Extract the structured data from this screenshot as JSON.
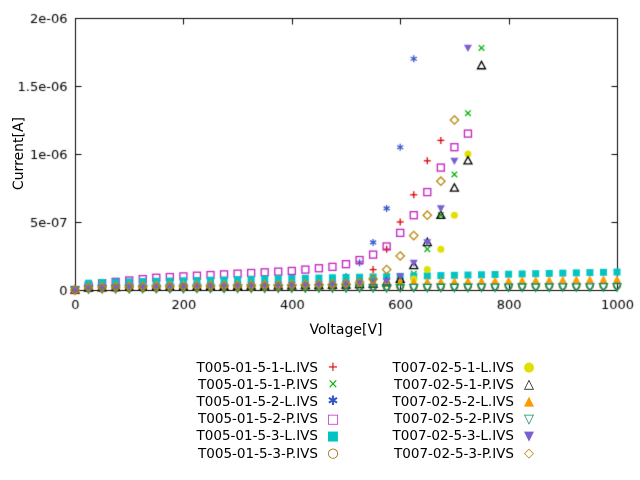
{
  "chart_data": {
    "type": "scatter",
    "title": "",
    "xlabel": "Voltage[V]",
    "ylabel": "Current[A]",
    "x_unit": "V",
    "y_unit": "A",
    "xlim": [
      0,
      1000
    ],
    "ylim": [
      0,
      2e-06
    ],
    "grid": false,
    "legend_position": "below",
    "xticks": [
      {
        "v": 0,
        "label": "0"
      },
      {
        "v": 200,
        "label": "200"
      },
      {
        "v": 400,
        "label": "400"
      },
      {
        "v": 600,
        "label": "600"
      },
      {
        "v": 800,
        "label": "800"
      },
      {
        "v": 1000,
        "label": "1000"
      }
    ],
    "yticks": [
      {
        "v": 0,
        "label": "0"
      },
      {
        "v": 5e-07,
        "label": "5e-07"
      },
      {
        "v": 1e-06,
        "label": "1e-06"
      },
      {
        "v": 1.5e-06,
        "label": "1.5e-06"
      },
      {
        "v": 2e-06,
        "label": "2e-06"
      }
    ],
    "value_scale": 1e-06,
    "series": [
      {
        "name": "T005-01-5-1-L.IVS",
        "color": "#dd0000",
        "marker": "plus",
        "legend_glyph": "+",
        "x_start": 0,
        "x_step": 25,
        "values": [
          0.0,
          0.01,
          0.012,
          0.014,
          0.016,
          0.018,
          0.02,
          0.022,
          0.024,
          0.026,
          0.028,
          0.03,
          0.032,
          0.034,
          0.036,
          0.038,
          0.04,
          0.043,
          0.047,
          0.052,
          0.06,
          0.08,
          0.15,
          0.3,
          0.5,
          0.7,
          0.95,
          1.1
        ]
      },
      {
        "name": "T005-01-5-1-P.IVS",
        "color": "#00b000",
        "marker": "cross",
        "legend_glyph": "×",
        "x_start": 0,
        "x_step": 25,
        "values": [
          0.0,
          0.008,
          0.01,
          0.012,
          0.013,
          0.014,
          0.015,
          0.016,
          0.017,
          0.018,
          0.019,
          0.02,
          0.021,
          0.022,
          0.023,
          0.024,
          0.025,
          0.026,
          0.027,
          0.028,
          0.03,
          0.032,
          0.035,
          0.04,
          0.05,
          0.12,
          0.3,
          0.55,
          0.85,
          1.3,
          1.78
        ]
      },
      {
        "name": "T005-01-5-2-L.IVS",
        "color": "#3355cc",
        "marker": "asterisk",
        "legend_glyph": "✱",
        "x_start": 0,
        "x_step": 25,
        "values": [
          0.0,
          0.01,
          0.013,
          0.015,
          0.017,
          0.019,
          0.021,
          0.023,
          0.025,
          0.027,
          0.029,
          0.031,
          0.033,
          0.035,
          0.037,
          0.04,
          0.043,
          0.046,
          0.05,
          0.06,
          0.1,
          0.2,
          0.35,
          0.6,
          1.05,
          1.7
        ]
      },
      {
        "name": "T005-01-5-2-P.IVS",
        "color": "#c020c0",
        "marker": "square-open",
        "legend_glyph": "□",
        "x_start": 0,
        "x_step": 25,
        "values": [
          0.0,
          0.03,
          0.05,
          0.06,
          0.07,
          0.08,
          0.09,
          0.095,
          0.1,
          0.105,
          0.11,
          0.115,
          0.12,
          0.125,
          0.13,
          0.135,
          0.14,
          0.15,
          0.16,
          0.17,
          0.19,
          0.22,
          0.26,
          0.32,
          0.42,
          0.55,
          0.72,
          0.9,
          1.05,
          1.15
        ]
      },
      {
        "name": "T005-01-5-3-L.IVS",
        "color": "#00c4c4",
        "marker": "square-filled",
        "legend_glyph": "■",
        "x_start": 0,
        "x_step": 25,
        "values": [
          0.0,
          0.05,
          0.055,
          0.058,
          0.06,
          0.062,
          0.064,
          0.066,
          0.068,
          0.07,
          0.072,
          0.074,
          0.076,
          0.078,
          0.08,
          0.082,
          0.084,
          0.086,
          0.088,
          0.09,
          0.092,
          0.094,
          0.096,
          0.098,
          0.1,
          0.102,
          0.104,
          0.106,
          0.108,
          0.11,
          0.112,
          0.114,
          0.116,
          0.118,
          0.12,
          0.122,
          0.124,
          0.126,
          0.128,
          0.13,
          0.132
        ]
      },
      {
        "name": "T005-01-5-3-P.IVS",
        "color": "#a06000",
        "marker": "circle-open",
        "legend_glyph": "○",
        "x_start": 0,
        "x_step": 25,
        "values": [
          0.0,
          0.012,
          0.013,
          0.014,
          0.015,
          0.015,
          0.016,
          0.016,
          0.017,
          0.017,
          0.018,
          0.018,
          0.019,
          0.019,
          0.02,
          0.02,
          0.021,
          0.021,
          0.022,
          0.022,
          0.023,
          0.023,
          0.024,
          0.024,
          0.025,
          0.025,
          0.026,
          0.026,
          0.027,
          0.027,
          0.028,
          0.028,
          0.029,
          0.029,
          0.03,
          0.03,
          0.031,
          0.031,
          0.032,
          0.032,
          0.033
        ]
      },
      {
        "name": "T007-02-5-1-L.IVS",
        "color": "#e0e000",
        "marker": "circle-filled",
        "legend_glyph": "●",
        "x_start": 0,
        "x_step": 25,
        "values": [
          0.0,
          0.02,
          0.022,
          0.024,
          0.025,
          0.026,
          0.027,
          0.028,
          0.029,
          0.03,
          0.031,
          0.032,
          0.033,
          0.034,
          0.035,
          0.036,
          0.037,
          0.038,
          0.039,
          0.04,
          0.042,
          0.044,
          0.046,
          0.05,
          0.06,
          0.08,
          0.15,
          0.3,
          0.55,
          1.0
        ]
      },
      {
        "name": "T007-02-5-1-P.IVS",
        "color": "#000000",
        "marker": "triangle-open",
        "legend_glyph": "△",
        "x_start": 0,
        "x_step": 25,
        "values": [
          0.0,
          0.015,
          0.017,
          0.019,
          0.02,
          0.021,
          0.022,
          0.023,
          0.024,
          0.025,
          0.026,
          0.027,
          0.028,
          0.029,
          0.03,
          0.031,
          0.032,
          0.033,
          0.034,
          0.035,
          0.037,
          0.04,
          0.045,
          0.055,
          0.08,
          0.18,
          0.35,
          0.55,
          0.75,
          0.95,
          1.65
        ]
      },
      {
        "name": "T007-02-5-2-L.IVS",
        "color": "#ff9900",
        "marker": "triangle-filled",
        "legend_glyph": "▲",
        "x_start": 0,
        "x_step": 25,
        "values": [
          0.0,
          0.03,
          0.033,
          0.035,
          0.037,
          0.038,
          0.04,
          0.041,
          0.042,
          0.043,
          0.044,
          0.045,
          0.046,
          0.047,
          0.048,
          0.049,
          0.05,
          0.051,
          0.052,
          0.053,
          0.054,
          0.055,
          0.056,
          0.057,
          0.058,
          0.06,
          0.061,
          0.062,
          0.063,
          0.065,
          0.066,
          0.067,
          0.068,
          0.07,
          0.071,
          0.072,
          0.073,
          0.075,
          0.076,
          0.077,
          0.078
        ]
      },
      {
        "name": "T007-02-5-2-P.IVS",
        "color": "#008c64",
        "marker": "down-triangle-open",
        "legend_glyph": "▽",
        "x_start": 0,
        "x_step": 25,
        "values": [
          0.0,
          0.008,
          0.009,
          0.01,
          0.01,
          0.011,
          0.011,
          0.012,
          0.012,
          0.013,
          0.013,
          0.013,
          0.014,
          0.014,
          0.014,
          0.015,
          0.015,
          0.015,
          0.016,
          0.016,
          0.016,
          0.017,
          0.017,
          0.017,
          0.018,
          0.018,
          0.018,
          0.019,
          0.019,
          0.019,
          0.02,
          0.02,
          0.02,
          0.021,
          0.021,
          0.021,
          0.022,
          0.022,
          0.022,
          0.023,
          0.023
        ]
      },
      {
        "name": "T007-02-5-3-L.IVS",
        "color": "#7a5fd0",
        "marker": "down-triangle-filled",
        "legend_glyph": "▼",
        "x_start": 0,
        "x_step": 25,
        "values": [
          0.0,
          0.018,
          0.02,
          0.022,
          0.024,
          0.025,
          0.026,
          0.027,
          0.028,
          0.029,
          0.03,
          0.031,
          0.032,
          0.033,
          0.034,
          0.035,
          0.036,
          0.038,
          0.04,
          0.042,
          0.045,
          0.05,
          0.055,
          0.065,
          0.1,
          0.2,
          0.35,
          0.6,
          0.95,
          1.78
        ]
      },
      {
        "name": "T007-02-5-3-P.IVS",
        "color": "#b8860b",
        "marker": "diamond-open",
        "legend_glyph": "◇",
        "x_start": 0,
        "x_step": 25,
        "values": [
          0.0,
          0.015,
          0.017,
          0.019,
          0.021,
          0.022,
          0.023,
          0.024,
          0.025,
          0.026,
          0.027,
          0.028,
          0.029,
          0.03,
          0.031,
          0.032,
          0.034,
          0.036,
          0.038,
          0.04,
          0.045,
          0.055,
          0.08,
          0.15,
          0.25,
          0.4,
          0.55,
          0.8,
          1.25
        ]
      }
    ]
  }
}
